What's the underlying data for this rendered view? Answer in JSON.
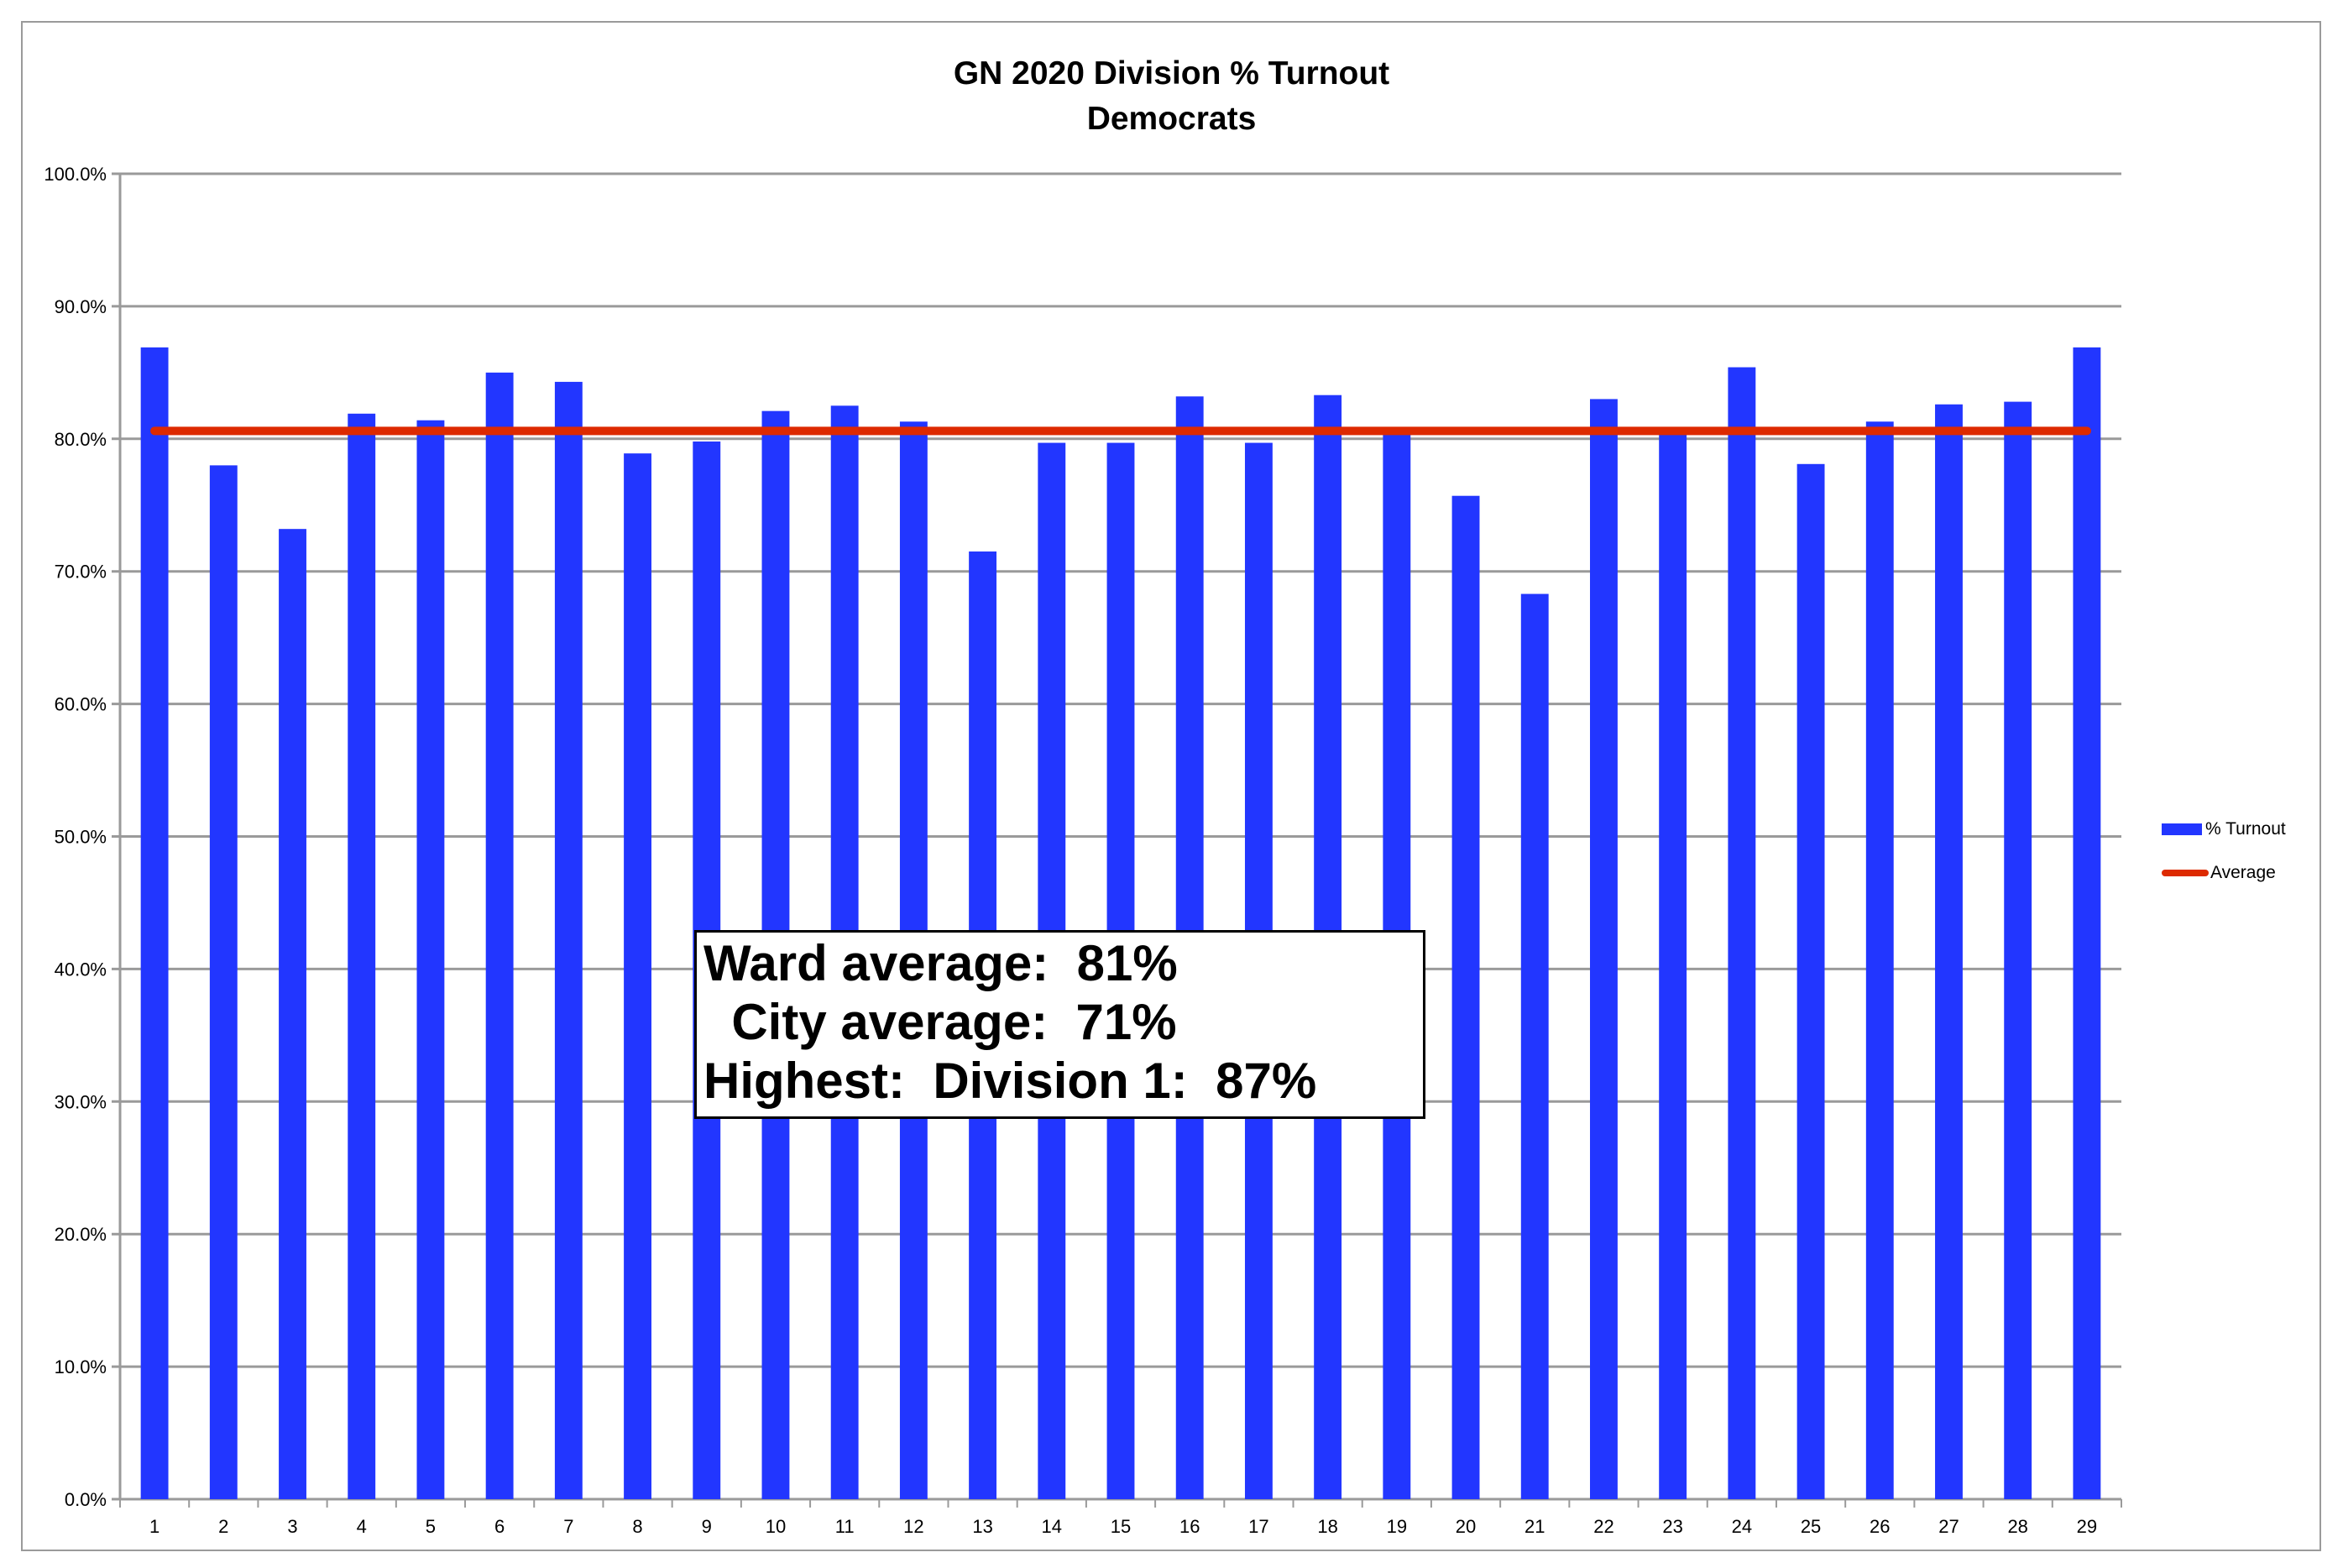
{
  "chart_data": {
    "type": "bar",
    "title": "GN 2020 Division % Turnout",
    "subtitle": "Democrats",
    "xlabel": "",
    "ylabel": "",
    "categories": [
      "1",
      "2",
      "3",
      "4",
      "5",
      "6",
      "7",
      "8",
      "9",
      "10",
      "11",
      "12",
      "13",
      "14",
      "15",
      "16",
      "17",
      "18",
      "19",
      "20",
      "21",
      "22",
      "23",
      "24",
      "25",
      "26",
      "27",
      "28",
      "29"
    ],
    "series": [
      {
        "name": "% Turnout",
        "type": "bar",
        "color": "#2236ff",
        "values": [
          86.9,
          78.0,
          73.2,
          81.9,
          81.4,
          85.0,
          84.3,
          78.9,
          79.8,
          82.1,
          82.5,
          81.3,
          71.5,
          79.7,
          79.7,
          83.2,
          79.7,
          83.3,
          80.6,
          75.7,
          68.3,
          83.0,
          80.5,
          85.4,
          78.1,
          81.3,
          82.6,
          82.8,
          86.9
        ]
      },
      {
        "name": "Average",
        "type": "line",
        "color": "#dd2a00",
        "value": 80.6
      }
    ],
    "ylim": [
      0,
      100
    ],
    "yticks": [
      "0.0%",
      "10.0%",
      "20.0%",
      "30.0%",
      "40.0%",
      "50.0%",
      "60.0%",
      "70.0%",
      "80.0%",
      "90.0%",
      "100.0%"
    ],
    "grid": true,
    "legend": "right",
    "annotation": [
      "Ward average:  81%",
      "  City average:  71%",
      "Highest:  Division 1:  87%"
    ]
  }
}
